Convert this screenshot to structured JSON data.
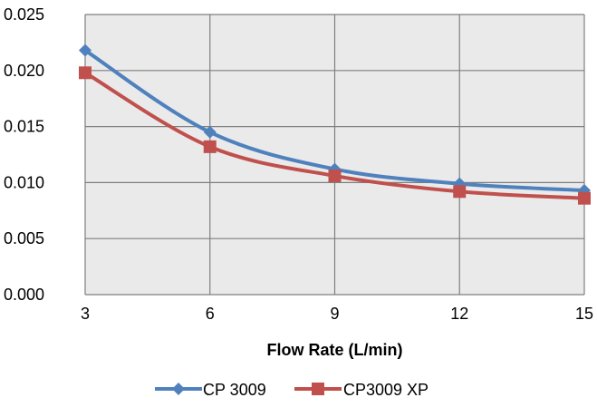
{
  "chart_data": {
    "type": "line",
    "xlabel": "Flow Rate (L/min)",
    "ylabel": "",
    "x": [
      3,
      6,
      9,
      12,
      15
    ],
    "x_ticks": [
      "3",
      "6",
      "9",
      "12",
      "15"
    ],
    "xlim": [
      3,
      15
    ],
    "ylim": [
      0,
      0.025
    ],
    "y_ticks": [
      "0.000",
      "0.005",
      "0.010",
      "0.015",
      "0.020",
      "0.025"
    ],
    "grid": true,
    "legend_position": "bottom",
    "smooth": true,
    "series": [
      {
        "name": "CP 3009",
        "values": [
          0.0218,
          0.0145,
          0.0112,
          0.0099,
          0.0093
        ],
        "color": "#4F81BD",
        "marker": "diamond"
      },
      {
        "name": "CP3009 XP",
        "values": [
          0.0198,
          0.0132,
          0.0106,
          0.0092,
          0.0086
        ],
        "color": "#C0504D",
        "marker": "square"
      }
    ]
  },
  "colors": {
    "plot_background": "#EAEAEA",
    "gridline": "#7F7F7F"
  }
}
